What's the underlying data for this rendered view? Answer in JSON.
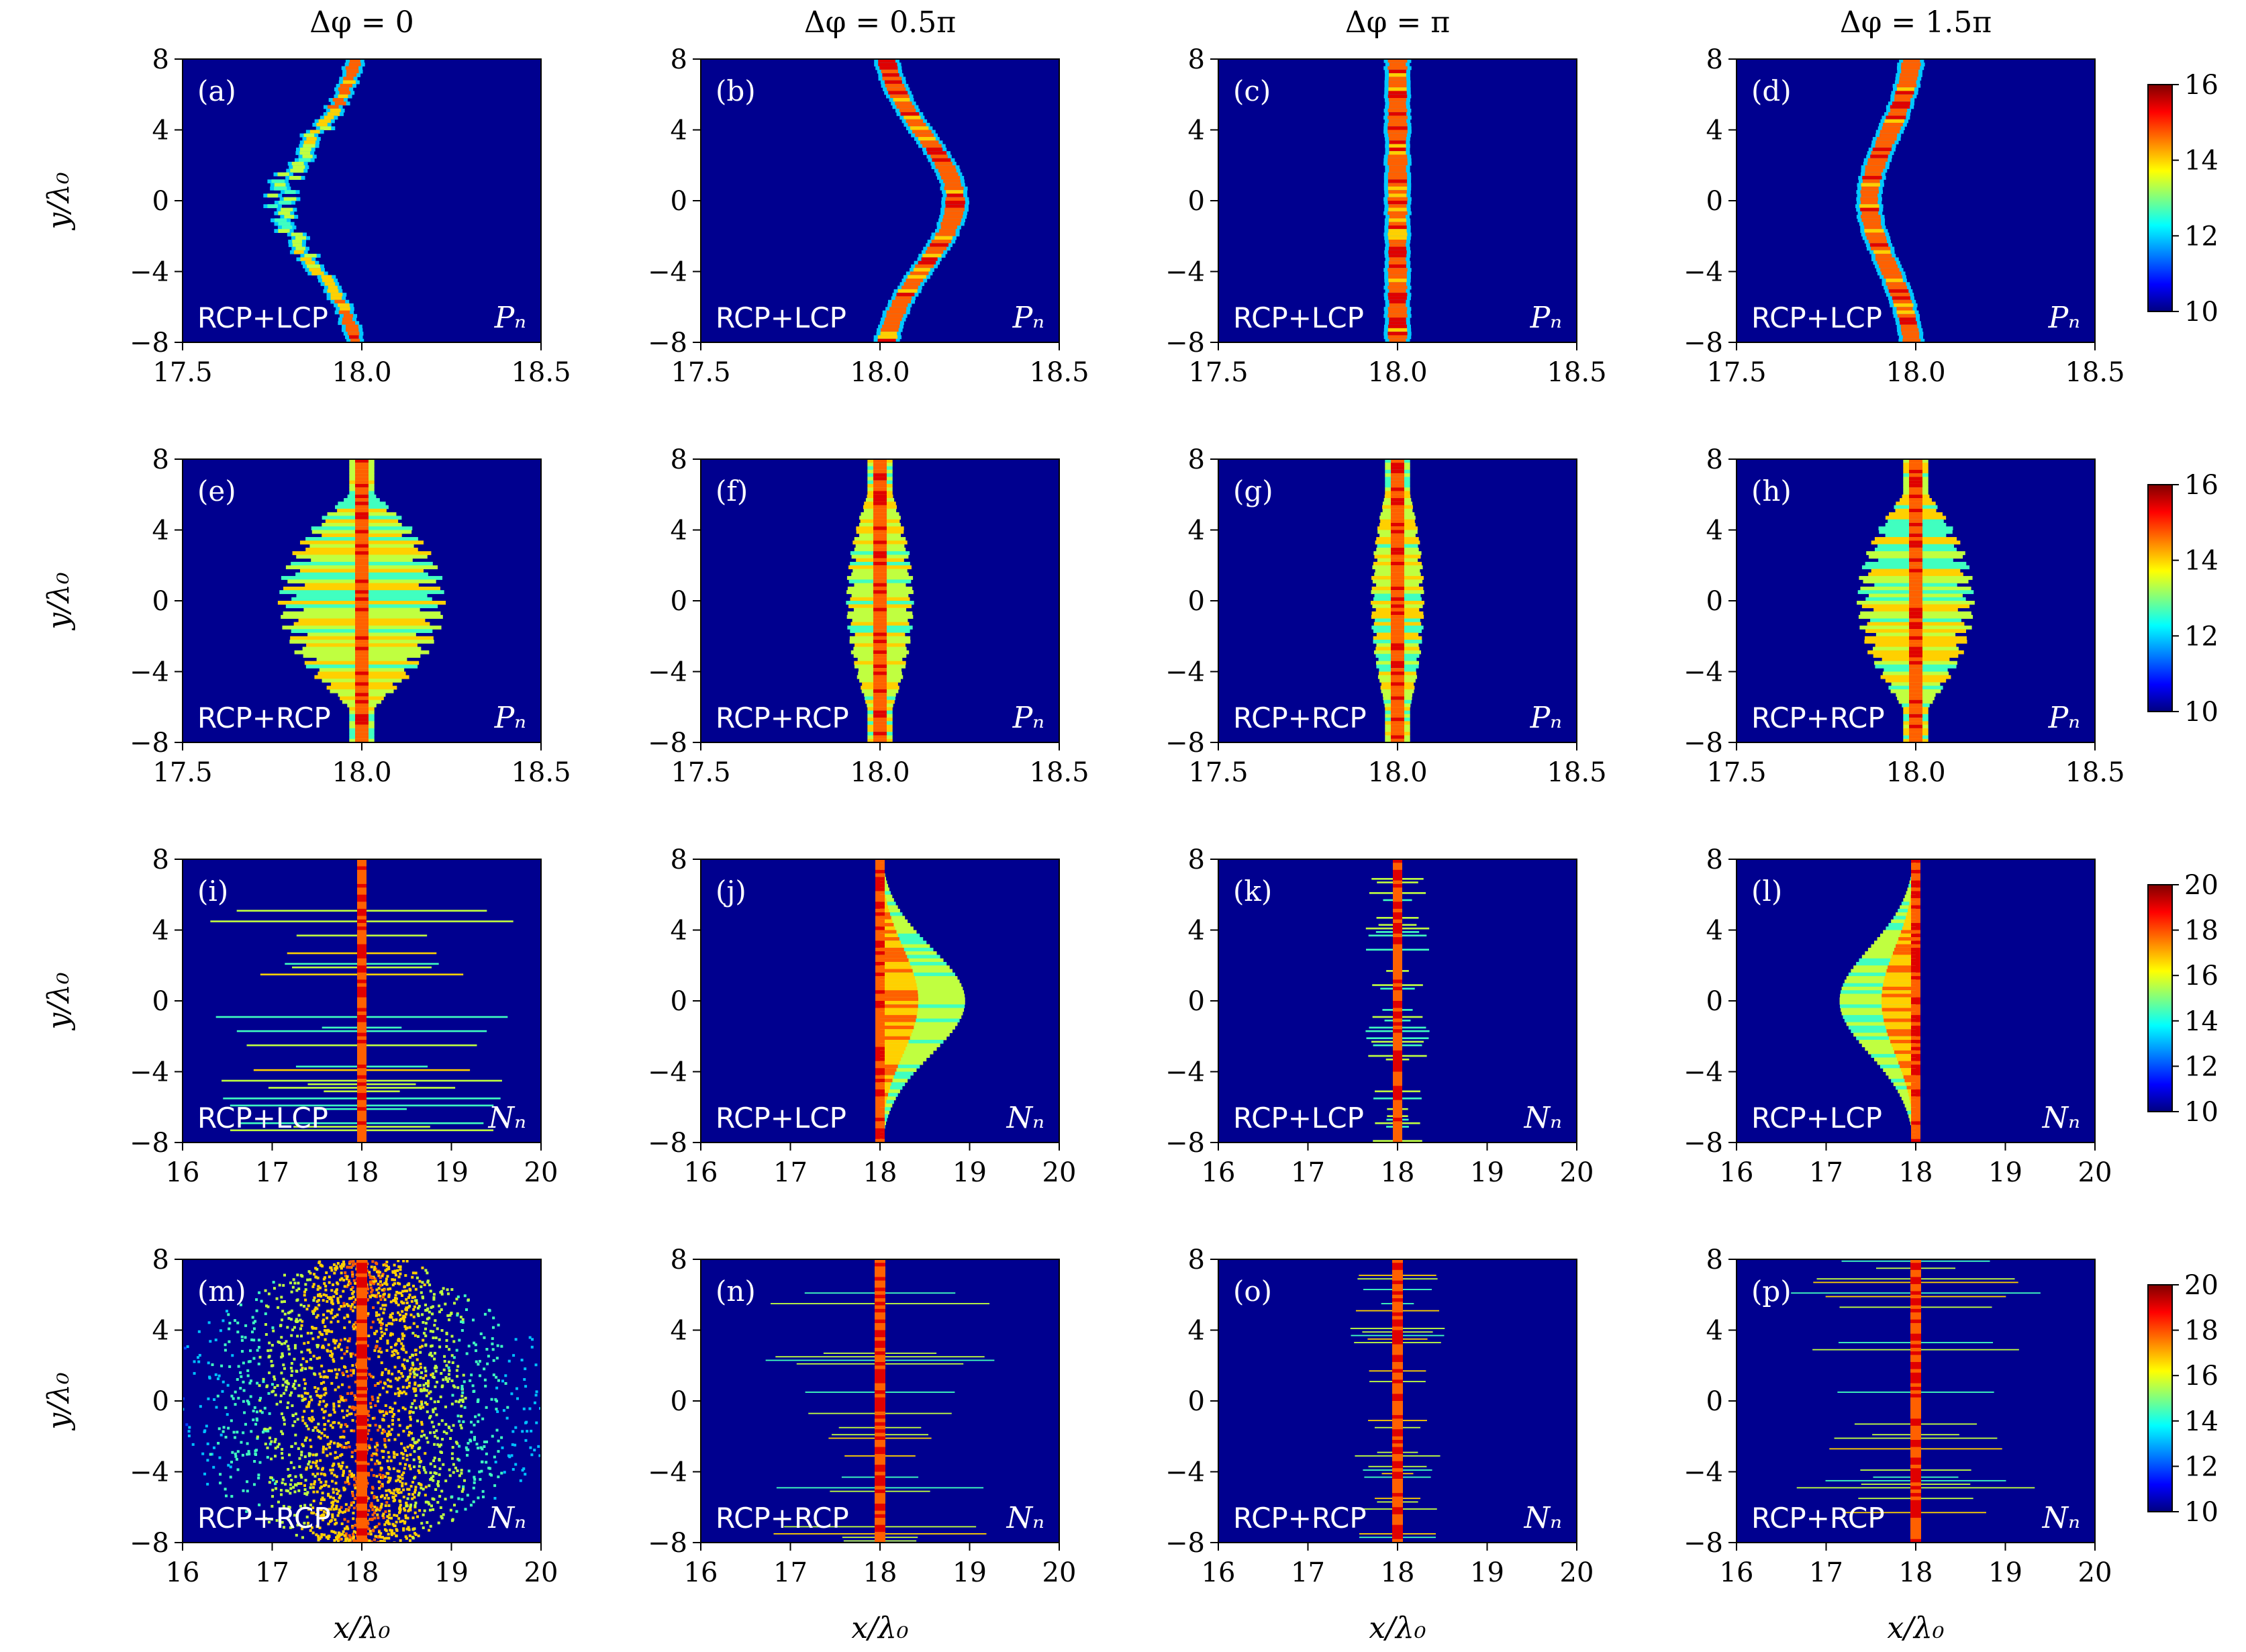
{
  "colors": {
    "background": "#00008f",
    "colormap": [
      "#000080",
      "#0000ff",
      "#00ffff",
      "#ffff00",
      "#ff0000",
      "#800000"
    ]
  },
  "column_headers": [
    "Δφ = 0",
    "Δφ = 0.5π",
    "Δφ = π",
    "Δφ = 1.5π"
  ],
  "rows": [
    {
      "mode": "RCP+LCP",
      "quantity": "Pₙ",
      "xlim": [
        17.5,
        18.5
      ],
      "xticks": [
        "17.5",
        "18.0",
        "18.5"
      ],
      "cbar": {
        "range": [
          10,
          16
        ],
        "ticks": [
          "10",
          "12",
          "14",
          "16"
        ]
      },
      "labels": [
        "(a)",
        "(b)",
        "(c)",
        "(d)"
      ],
      "shape": "filament",
      "center": [
        17.78,
        18.21,
        18.0,
        17.87
      ]
    },
    {
      "mode": "RCP+RCP",
      "quantity": "Pₙ",
      "xlim": [
        17.5,
        18.5
      ],
      "xticks": [
        "17.5",
        "18.0",
        "18.5"
      ],
      "cbar": {
        "range": [
          10,
          16
        ],
        "ticks": [
          "10",
          "12",
          "14",
          "16"
        ]
      },
      "labels": [
        "(e)",
        "(f)",
        "(g)",
        "(h)"
      ],
      "shape": "spread",
      "spread": [
        0.2,
        0.06,
        0.04,
        0.13
      ]
    },
    {
      "mode": "RCP+LCP",
      "quantity": "Nₙ",
      "xlim": [
        16,
        20
      ],
      "xticks": [
        "16",
        "17",
        "18",
        "19",
        "20"
      ],
      "cbar": {
        "range": [
          10,
          20
        ],
        "ticks": [
          "10",
          "12",
          "14",
          "16",
          "18",
          "20"
        ]
      },
      "labels": [
        "(i)",
        "(j)",
        "(k)",
        "(l)"
      ],
      "shape": "plume",
      "plume": [
        1.3,
        0.95,
        0.25,
        -0.85
      ]
    },
    {
      "mode": "RCP+RCP",
      "quantity": "Nₙ",
      "xlim": [
        16,
        20
      ],
      "xticks": [
        "16",
        "17",
        "18",
        "19",
        "20"
      ],
      "cbar": {
        "range": [
          10,
          20
        ],
        "ticks": [
          "10",
          "12",
          "14",
          "16",
          "18",
          "20"
        ]
      },
      "labels": [
        "(m)",
        "(n)",
        "(o)",
        "(p)"
      ],
      "shape": "streaks",
      "streak": [
        2.0,
        1.3,
        0.55,
        1.4
      ]
    }
  ],
  "y_axis": {
    "label": "y/λ₀",
    "ylim": [
      -8,
      8
    ],
    "ticks": [
      "−8",
      "−4",
      "0",
      "4",
      "8"
    ]
  },
  "x_axis": {
    "label": "x/λ₀"
  },
  "chart_data": {
    "type": "heatmap",
    "x_center": 18.0,
    "ylim": [
      -8,
      8
    ],
    "panels_per_row": 4,
    "rows": 4
  }
}
